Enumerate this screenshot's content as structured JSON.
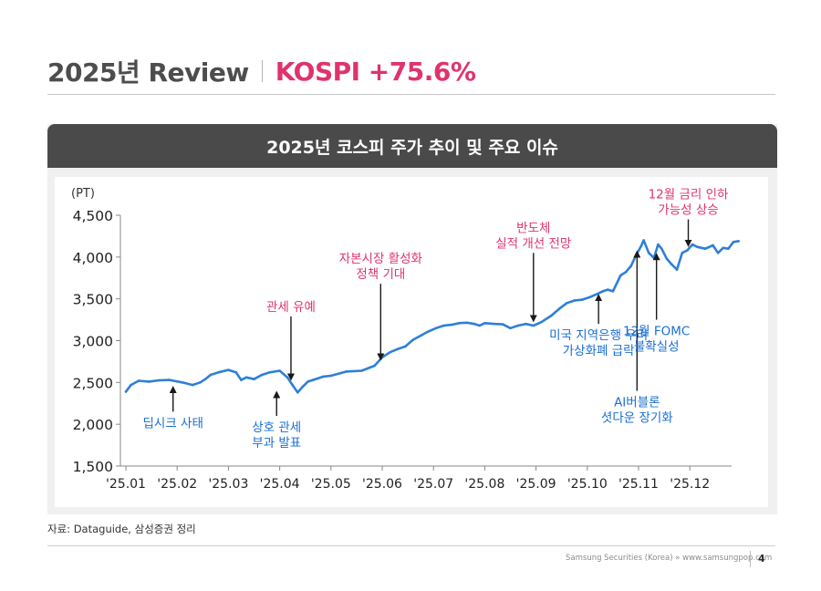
{
  "header": {
    "title": "2025년 Review",
    "accent": "KOSPI +75.6%"
  },
  "panel": {
    "title": "2025년 코스피 주가 추이 및 주요 이슈"
  },
  "chart_data": {
    "type": "line",
    "title": "2025년 코스피 주가 추이 및 주요 이슈",
    "ylabel": "(PT)",
    "xlabel": "",
    "ylim": [
      1500,
      4500
    ],
    "xlim": [
      0,
      12
    ],
    "yticks": [
      4500,
      4000,
      3500,
      3000,
      2500,
      2000,
      1500
    ],
    "yticklabels": [
      "4,500",
      "4,000",
      "3,500",
      "3,000",
      "2,500",
      "2,000",
      "1,500"
    ],
    "xticklabels": [
      "'25.01",
      "'25.02",
      "'25.03",
      "'25.04",
      "'25.05",
      "'25.06",
      "'25.07",
      "'25.08",
      "'25.09",
      "'25.10",
      "'25.11",
      "'25.12"
    ],
    "grid": false,
    "line_color": "#2f7fd8",
    "series": [
      {
        "name": "KOSPI",
        "x": [
          0.0,
          0.1,
          0.25,
          0.45,
          0.65,
          0.85,
          1.1,
          1.3,
          1.45,
          1.55,
          1.65,
          1.8,
          2.0,
          2.15,
          2.25,
          2.35,
          2.5,
          2.65,
          2.8,
          3.0,
          3.15,
          3.25,
          3.35,
          3.45,
          3.55,
          3.65,
          3.75,
          3.85,
          4.0,
          4.3,
          4.6,
          4.85,
          5.0,
          5.15,
          5.3,
          5.45,
          5.6,
          5.75,
          5.9,
          6.05,
          6.2,
          6.35,
          6.5,
          6.65,
          6.8,
          6.9,
          7.0,
          7.2,
          7.35,
          7.5,
          7.65,
          7.8,
          7.95,
          8.1,
          8.3,
          8.45,
          8.6,
          8.75,
          8.9,
          9.05,
          9.2,
          9.3,
          9.4,
          9.5,
          9.65,
          9.75,
          9.85,
          9.95,
          10.05,
          10.1,
          10.2,
          10.3,
          10.38,
          10.45,
          10.55,
          10.65,
          10.75,
          10.85,
          10.95,
          11.05,
          11.15,
          11.3,
          11.45,
          11.55,
          11.65,
          11.75,
          11.85,
          11.95
        ],
        "values": [
          2390,
          2470,
          2520,
          2510,
          2525,
          2530,
          2500,
          2470,
          2500,
          2540,
          2590,
          2620,
          2650,
          2620,
          2530,
          2560,
          2540,
          2590,
          2620,
          2640,
          2560,
          2470,
          2380,
          2450,
          2510,
          2530,
          2550,
          2570,
          2580,
          2630,
          2640,
          2700,
          2800,
          2860,
          2900,
          2930,
          3010,
          3060,
          3110,
          3150,
          3180,
          3190,
          3210,
          3215,
          3200,
          3180,
          3210,
          3200,
          3195,
          3150,
          3180,
          3200,
          3180,
          3220,
          3300,
          3380,
          3450,
          3480,
          3490,
          3520,
          3560,
          3590,
          3610,
          3590,
          3780,
          3820,
          3890,
          4020,
          4130,
          4200,
          4050,
          3990,
          4150,
          4100,
          3980,
          3910,
          3850,
          4050,
          4080,
          4150,
          4120,
          4100,
          4140,
          4050,
          4110,
          4100,
          4180,
          4190
        ]
      }
    ],
    "annotations": [
      {
        "lines": [
          "딥시크 사태"
        ],
        "color": "#1a6fd1",
        "arrow_x": 0.92,
        "arrow_from": 2150,
        "arrow_to": 2460
      },
      {
        "lines": [
          "상호 관세",
          "부과 발표"
        ],
        "color": "#1a6fd1",
        "arrow_x": 2.94,
        "arrow_from": 2100,
        "arrow_to": 2400
      },
      {
        "lines": [
          "관세 유예"
        ],
        "color": "#e0336e",
        "arrow_x": 3.22,
        "arrow_from": 3290,
        "arrow_to": 2520
      },
      {
        "lines": [
          "자본시장 활성화",
          "정책 기대"
        ],
        "color": "#e0336e",
        "arrow_x": 4.97,
        "arrow_from": 3680,
        "arrow_to": 2760
      },
      {
        "lines": [
          "반도체",
          "실적 개선 전망"
        ],
        "color": "#e0336e",
        "arrow_x": 7.95,
        "arrow_from": 4050,
        "arrow_to": 3220
      },
      {
        "lines": [
          "미국 지역은행 우려",
          "가상화폐 급락"
        ],
        "color": "#1a6fd1",
        "arrow_x": 9.22,
        "arrow_from": 3200,
        "arrow_to": 3560
      },
      {
        "lines": [
          "AI버블론",
          "셧다운 장기화"
        ],
        "color": "#1a6fd1",
        "arrow_x": 9.97,
        "arrow_from": 2400,
        "arrow_to": 4080
      },
      {
        "lines": [
          "12월 FOMC",
          "불확실성"
        ],
        "color": "#1a6fd1",
        "arrow_x": 10.35,
        "arrow_from": 3250,
        "arrow_to": 4050
      },
      {
        "lines": [
          "12월 금리 인하",
          "가능성 상승"
        ],
        "color": "#e0336e",
        "arrow_x": 10.97,
        "arrow_from": 4450,
        "arrow_to": 4120
      }
    ]
  },
  "source": "자료: Dataguide, 삼성증권 정리",
  "footer": {
    "company": "Samsung Securities (Korea) » www.samsungpop.com",
    "page": "4"
  }
}
